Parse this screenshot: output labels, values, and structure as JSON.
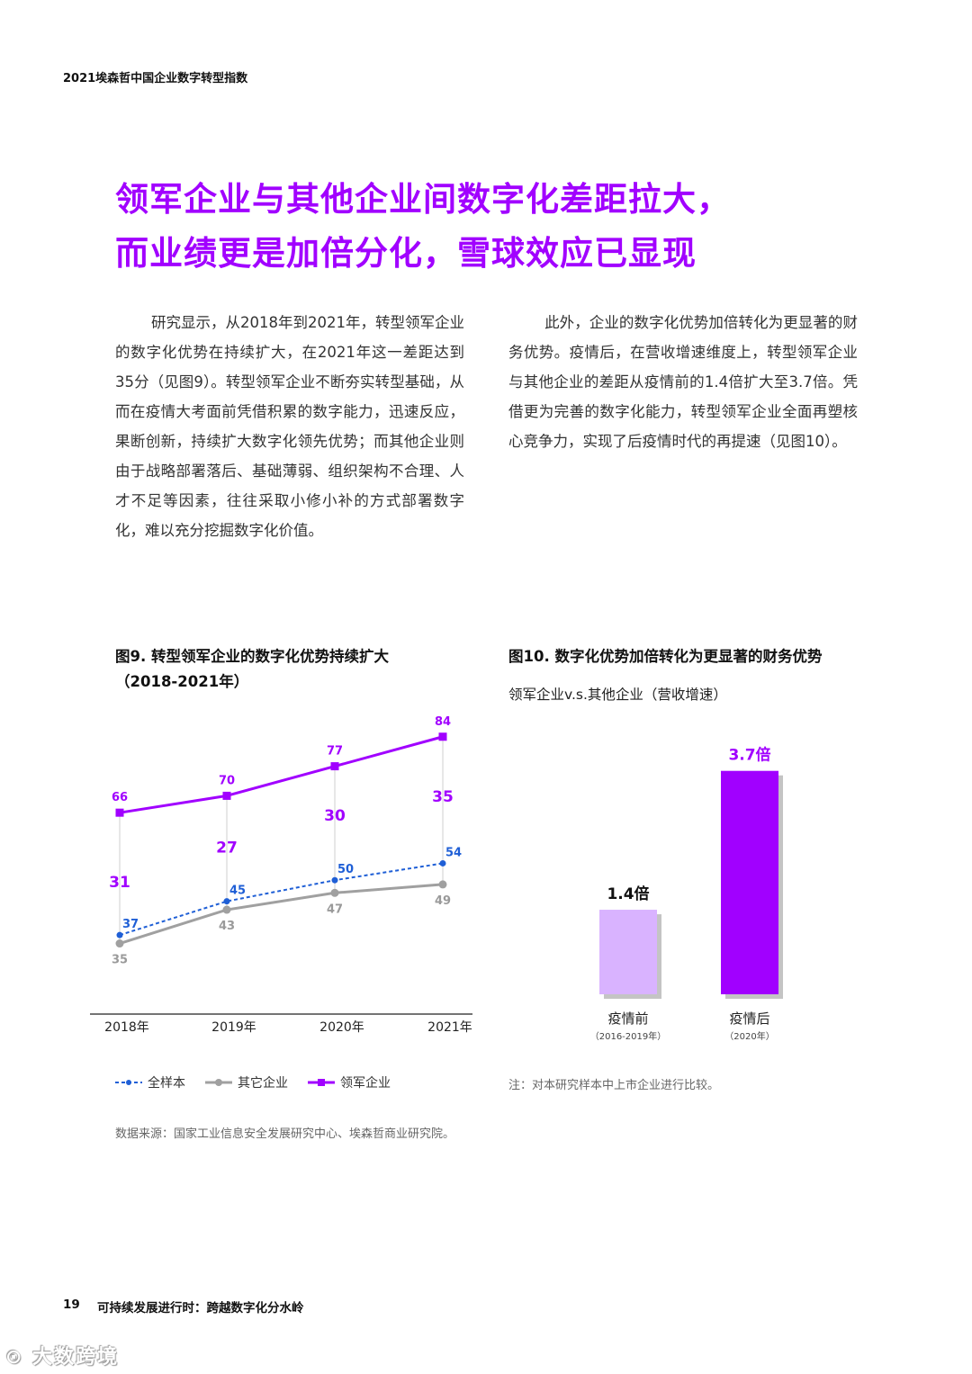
{
  "header": {
    "title": "2021埃森哲中国企业数字转型指数"
  },
  "headline": {
    "line1": "领军企业与其他企业间数字化差距拉大，",
    "line2": "而业绩更是加倍分化，雪球效应已显现"
  },
  "body": {
    "left_paragraph": "研究显示，从2018年到2021年，转型领军企业的数字化优势在持续扩大，在2021年这一差距达到35分（见图9）。转型领军企业不断夯实转型基础，从而在疫情大考面前凭借积累的数字能力，迅速反应，果断创新，持续扩大数字化领先优势；而其他企业则由于战略部署落后、基础薄弱、组织架构不合理、人才不足等因素，往往采取小修小补的方式部署数字化，难以充分挖掘数字化价值。",
    "right_paragraph": "此外，企业的数字化优势加倍转化为更显著的财务优势。疫情后，在营收增速维度上，转型领军企业与其他企业的差距从疫情前的1.4倍扩大至3.7倍。凭借更为完善的数字化能力，转型领军企业全面再塑核心竞争力，实现了后疫情时代的再提速（见图10）。"
  },
  "fig9": {
    "title_line1": "图9. 转型领军企业的数字化优势持续扩大",
    "title_line2": "（2018-2021年）",
    "source": "数据来源：国家工业信息安全发展研究中心、埃森哲商业研究院。"
  },
  "fig10": {
    "title": "图10. 数字化优势加倍转化为更显著的财务优势",
    "subtitle": "领军企业v.s.其他企业（营收增速）",
    "note": "注：对本研究样本中上市企业进行比较。"
  },
  "colors": {
    "accent": "#a100ff",
    "blue": "#1f5fd6",
    "gray": "#a0a0a0",
    "light_purple": "#d9b3ff"
  },
  "chart_data": [
    {
      "type": "line",
      "title": "图9. 转型领军企业的数字化优势持续扩大（2018-2021年）",
      "categories": [
        "2018年",
        "2019年",
        "2020年",
        "2021年"
      ],
      "series": [
        {
          "name": "全样本",
          "values": [
            37,
            45,
            50,
            54
          ]
        },
        {
          "name": "其它企业",
          "values": [
            35,
            43,
            47,
            49
          ]
        },
        {
          "name": "领军企业",
          "values": [
            66,
            70,
            77,
            84
          ]
        }
      ],
      "gaps": [
        31,
        27,
        30,
        35
      ],
      "ylim": [
        30,
        88
      ]
    },
    {
      "type": "bar",
      "title": "图10. 数字化优势加倍转化为更显著的财务优势",
      "categories": [
        "疫情前",
        "疫情后"
      ],
      "sublabels": [
        "（2016-2019年）",
        "（2020年）"
      ],
      "values": [
        1.4,
        3.7
      ],
      "value_labels": [
        "1.4倍",
        "3.7倍"
      ],
      "ylim": [
        0,
        3.8
      ]
    }
  ]
}
